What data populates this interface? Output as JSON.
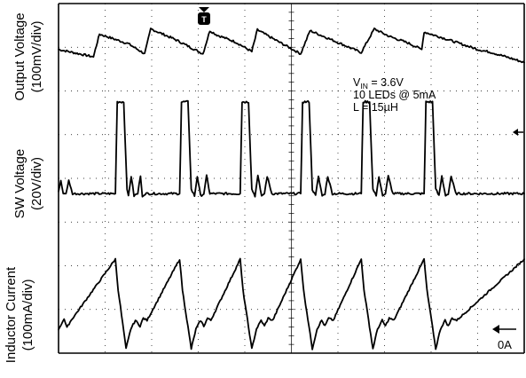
{
  "chart_data": {
    "type": "line",
    "grid": true,
    "grid_divisions": {
      "x": 10,
      "y": 8
    },
    "x_range_div": [
      0,
      10
    ],
    "channels": [
      {
        "name": "Output Voltage",
        "label_line1": "Output Voltage",
        "label_line2": "(100mV/div)",
        "y_range_div": [
          0,
          8
        ],
        "x": [
          0.0,
          0.75,
          0.79,
          0.88,
          1.5,
          1.85,
          1.98,
          2.5,
          3.1,
          3.25,
          3.4,
          3.8,
          4.15,
          4.27,
          4.6,
          5.2,
          5.4,
          5.8,
          6.5,
          6.78,
          7.1,
          7.5,
          7.8,
          7.85,
          8.35,
          9.0,
          9.3,
          9.8,
          10.0
        ],
        "y": [
          6.95,
          6.78,
          6.95,
          7.3,
          7.08,
          6.85,
          7.42,
          7.18,
          6.85,
          7.38,
          7.28,
          7.12,
          6.9,
          7.4,
          7.2,
          6.85,
          7.38,
          7.2,
          6.88,
          7.42,
          7.25,
          7.1,
          6.95,
          7.35,
          7.18,
          6.95,
          6.88,
          6.72,
          6.65
        ]
      },
      {
        "name": "SW Voltage",
        "label_line1": "SW Voltage",
        "label_line2": "(20V/div)",
        "y_range_div": [
          0,
          8
        ],
        "marker": "arrow",
        "x": [
          0.0,
          0.05,
          0.1,
          0.16,
          0.22,
          0.3,
          0.38,
          0.5,
          1.22,
          1.26,
          1.4,
          1.47,
          1.5,
          1.56,
          1.62,
          1.7,
          1.76,
          1.8,
          1.86,
          1.95,
          2.6,
          2.64,
          2.78,
          2.85,
          2.92,
          2.98,
          3.05,
          3.12,
          3.18,
          3.25,
          3.9,
          3.94,
          4.08,
          4.15,
          4.22,
          4.28,
          4.36,
          4.42,
          4.48,
          4.58,
          5.2,
          5.24,
          5.38,
          5.45,
          5.52,
          5.58,
          5.66,
          5.72,
          5.78,
          5.88,
          6.5,
          6.54,
          6.68,
          6.75,
          6.82,
          6.88,
          6.96,
          7.02,
          7.08,
          7.18,
          7.85,
          7.89,
          8.03,
          8.1,
          8.17,
          8.23,
          8.31,
          8.37,
          8.43,
          8.53,
          10.0
        ],
        "y": [
          3.7,
          3.95,
          3.65,
          3.65,
          3.95,
          3.65,
          3.65,
          3.65,
          3.65,
          5.75,
          5.75,
          3.75,
          3.6,
          4.05,
          3.6,
          3.65,
          4.05,
          3.6,
          3.65,
          3.65,
          3.65,
          5.75,
          5.75,
          3.75,
          3.6,
          4.05,
          3.6,
          3.65,
          4.05,
          3.65,
          3.65,
          5.75,
          5.75,
          3.75,
          3.6,
          4.05,
          3.6,
          3.65,
          4.05,
          3.65,
          3.65,
          5.75,
          5.75,
          3.75,
          3.6,
          4.05,
          3.6,
          3.65,
          4.05,
          3.65,
          3.65,
          5.75,
          5.75,
          3.75,
          3.6,
          4.05,
          3.6,
          3.65,
          4.05,
          3.65,
          3.65,
          5.75,
          5.75,
          3.75,
          3.6,
          4.05,
          3.6,
          3.65,
          4.05,
          3.65,
          3.65
        ]
      },
      {
        "name": "Inductor Current",
        "label_line1": "Inductor Current",
        "label_line2": "(100mA/div)",
        "y_range_div": [
          0,
          8
        ],
        "marker": "0A",
        "x": [
          0.0,
          0.12,
          0.18,
          0.25,
          1.22,
          1.28,
          1.45,
          1.55,
          1.65,
          1.75,
          1.82,
          1.9,
          2.6,
          2.66,
          2.85,
          2.95,
          3.05,
          3.12,
          3.2,
          3.27,
          3.9,
          3.96,
          4.15,
          4.25,
          4.35,
          4.42,
          4.5,
          4.6,
          5.2,
          5.26,
          5.45,
          5.55,
          5.65,
          5.72,
          5.8,
          5.9,
          6.5,
          6.56,
          6.75,
          6.85,
          6.95,
          7.02,
          7.1,
          7.2,
          7.85,
          7.91,
          8.1,
          8.2,
          8.3,
          8.37,
          8.45,
          8.55,
          10.0
        ],
        "y": [
          0.55,
          0.78,
          0.58,
          0.72,
          2.15,
          1.45,
          0.1,
          0.55,
          0.75,
          0.62,
          0.8,
          0.75,
          2.15,
          1.45,
          0.1,
          0.55,
          0.75,
          0.62,
          0.8,
          0.75,
          2.15,
          1.45,
          0.1,
          0.55,
          0.75,
          0.62,
          0.8,
          0.75,
          2.15,
          1.45,
          0.1,
          0.55,
          0.75,
          0.62,
          0.8,
          0.75,
          2.15,
          1.45,
          0.1,
          0.55,
          0.75,
          0.62,
          0.8,
          0.75,
          2.15,
          1.45,
          0.1,
          0.55,
          0.75,
          0.62,
          0.8,
          0.75,
          2.15
        ]
      }
    ],
    "annotations": {
      "vin_symbol": "V",
      "vin_sub": "IN",
      "vin_value": " = 3.6V",
      "leds": "10 LEDs @ 5mA",
      "inductor": "L = 15µH",
      "zero_label": "0A",
      "trigger_label": "T"
    }
  }
}
